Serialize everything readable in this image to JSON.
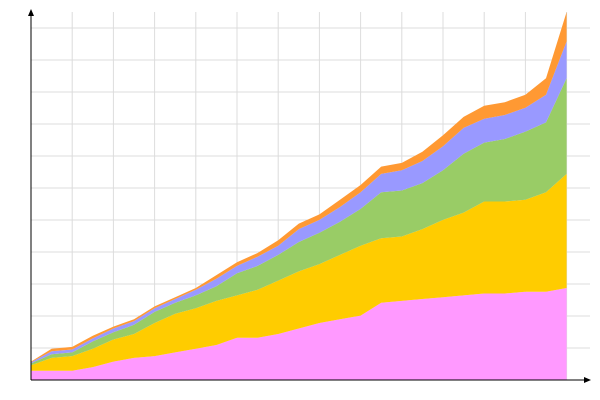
{
  "chart_data": {
    "type": "area",
    "stacked": true,
    "grid": true,
    "legend": "none",
    "x": [
      0,
      1,
      2,
      3,
      4,
      5,
      6,
      7,
      8,
      9,
      10,
      11,
      12,
      13,
      14,
      15,
      16,
      17,
      18,
      19,
      20,
      21,
      22,
      23,
      24,
      25,
      26
    ],
    "xlim": [
      0,
      27
    ],
    "ylim": [
      0,
      100
    ],
    "series": [
      {
        "color": "#ff99ff",
        "values": [
          2.5,
          2.5,
          2.5,
          3.5,
          5,
          6,
          6.5,
          7.5,
          8.5,
          9.5,
          11.5,
          11.5,
          12.5,
          14,
          15.5,
          16.5,
          17.5,
          21,
          21.5,
          22,
          22.5,
          23,
          23.5,
          23.5,
          24,
          24,
          25
        ]
      },
      {
        "color": "#ffcc00",
        "values": [
          1.5,
          3.5,
          4,
          5,
          6,
          6.5,
          9,
          10.5,
          11,
          12,
          11.5,
          13,
          14.5,
          15.5,
          16,
          17.5,
          19,
          17.5,
          17.5,
          19,
          21,
          22.5,
          25,
          25,
          25,
          27,
          31
        ]
      },
      {
        "color": "#99cc66",
        "values": [
          0.5,
          1,
          1,
          2,
          2,
          2.5,
          3,
          3,
          3.5,
          4,
          6,
          6.5,
          7,
          8,
          8.5,
          9,
          10,
          12.5,
          12.5,
          12.5,
          13.5,
          16,
          16,
          17,
          18.5,
          19,
          26
        ]
      },
      {
        "color": "#9999ff",
        "values": [
          0.3,
          0.8,
          0.8,
          0.8,
          1,
          1,
          1,
          1,
          1.5,
          2,
          2,
          2.5,
          2.5,
          3.5,
          3.5,
          4,
          4.5,
          5,
          5.5,
          6,
          6.5,
          7,
          6.5,
          6.5,
          6.5,
          7.5,
          10
        ]
      },
      {
        "color": "#ff9933",
        "values": [
          0.2,
          0.7,
          0.7,
          0.7,
          0.5,
          0.5,
          0.5,
          0.5,
          0.5,
          1,
          1,
          1,
          1.5,
          1.5,
          1.5,
          2,
          2,
          2,
          2,
          2.5,
          3,
          3,
          3.5,
          3.5,
          3.5,
          4.5,
          8
        ]
      }
    ]
  }
}
